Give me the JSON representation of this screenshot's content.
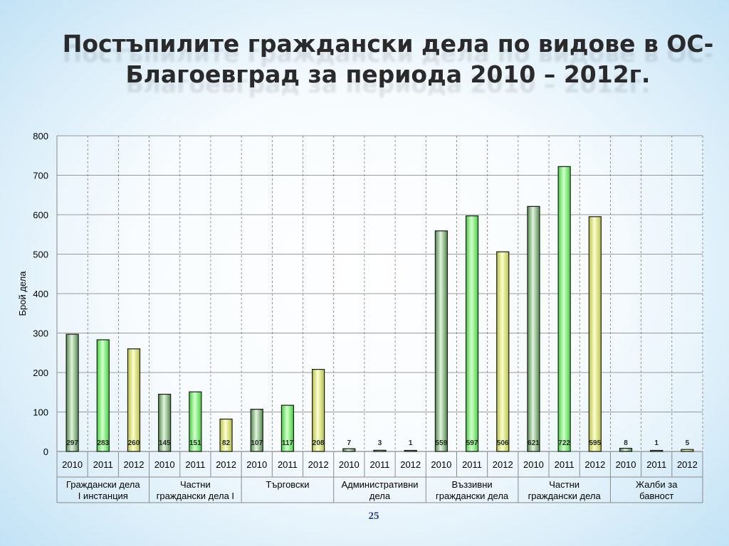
{
  "slide": {
    "title_line1": "Постъпилите граждански дела по видове в ОС-",
    "title_line2": "Благоевград  за периода 2010 – 2012г.",
    "page_number": "25"
  },
  "chart_data": {
    "type": "bar",
    "ylabel": "Брой дела",
    "ylim": [
      0,
      800
    ],
    "yticks": [
      0,
      100,
      200,
      300,
      400,
      500,
      600,
      700,
      800
    ],
    "grid": true,
    "groups": [
      {
        "label_lines": [
          "Граждански дела",
          "I инстанция"
        ],
        "years": [
          "2010",
          "2011",
          "2012"
        ],
        "values": [
          297,
          283,
          260
        ]
      },
      {
        "label_lines": [
          "Частни",
          "граждански дела I"
        ],
        "years": [
          "2010",
          "2011",
          "2012"
        ],
        "values": [
          145,
          151,
          82
        ]
      },
      {
        "label_lines": [
          "Търговски"
        ],
        "years": [
          "2010",
          "2011",
          "2012"
        ],
        "values": [
          107,
          117,
          208
        ]
      },
      {
        "label_lines": [
          "Административни",
          "дела"
        ],
        "years": [
          "2010",
          "2011",
          "2012"
        ],
        "values": [
          7,
          3,
          1
        ]
      },
      {
        "label_lines": [
          "Въззивни",
          "граждански дела"
        ],
        "years": [
          "2010",
          "2011",
          "2012"
        ],
        "values": [
          559,
          597,
          506
        ]
      },
      {
        "label_lines": [
          "Частни",
          "граждански дела"
        ],
        "years": [
          "2010",
          "2011",
          "2012"
        ],
        "values": [
          621,
          722,
          595
        ]
      },
      {
        "label_lines": [
          "Жалби за",
          "бавност"
        ],
        "years": [
          "2010",
          "2011",
          "2012"
        ],
        "values": [
          8,
          1,
          5
        ]
      }
    ],
    "year_colors": {
      "2010": {
        "light": "#e4f3df",
        "dark": "#4f8a4a"
      },
      "2011": {
        "light": "#d6ffcf",
        "dark": "#3fd23a"
      },
      "2012": {
        "light": "#fbffd2",
        "dark": "#b8c23f"
      }
    }
  }
}
